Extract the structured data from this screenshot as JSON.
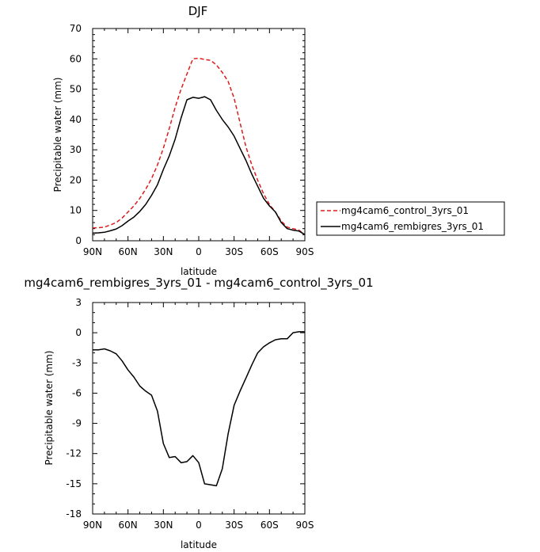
{
  "chart_data": [
    {
      "type": "line",
      "title": "DJF",
      "xlabel": "latitude",
      "ylabel": "Precipitable water (mm)",
      "xlim": [
        90,
        -90
      ],
      "ylim": [
        0,
        70
      ],
      "xticks": [
        90,
        60,
        30,
        0,
        -30,
        -60,
        -90
      ],
      "xtick_labels": [
        "90N",
        "60N",
        "30N",
        "0",
        "30S",
        "60S",
        "90S"
      ],
      "yticks": [
        0,
        10,
        20,
        30,
        40,
        50,
        60,
        70
      ],
      "ytick_labels": [
        "0",
        "10",
        "20",
        "30",
        "40",
        "50",
        "60",
        "70"
      ],
      "legend_position": "right",
      "series": [
        {
          "name": "mg4cam6_control_3yrs_01",
          "color": "#dd1c1c",
          "dash": "dashed",
          "x": [
            90,
            85,
            80,
            75,
            70,
            65,
            60,
            55,
            50,
            45,
            40,
            35,
            30,
            25,
            20,
            15,
            10,
            5,
            0,
            -5,
            -10,
            -15,
            -20,
            -25,
            -30,
            -35,
            -40,
            -45,
            -50,
            -55,
            -60,
            -65,
            -70,
            -75,
            -80,
            -85,
            -90
          ],
          "y": [
            4.2,
            4.3,
            4.5,
            5.2,
            6.0,
            7.5,
            9.5,
            11.5,
            14.0,
            17.0,
            20.5,
            25.0,
            30.5,
            37.0,
            44.0,
            50.0,
            55.0,
            60.0,
            60.2,
            59.8,
            59.5,
            58.0,
            55.5,
            52.5,
            47.0,
            39.0,
            31.0,
            25.0,
            20.0,
            15.5,
            12.0,
            9.5,
            6.5,
            4.5,
            4.0,
            3.5,
            2.0
          ]
        },
        {
          "name": "mg4cam6_rembigres_3yrs_01",
          "color": "#000000",
          "dash": "solid",
          "x": [
            90,
            85,
            80,
            75,
            70,
            65,
            60,
            55,
            50,
            45,
            40,
            35,
            30,
            25,
            20,
            15,
            10,
            5,
            0,
            -5,
            -10,
            -15,
            -20,
            -25,
            -30,
            -35,
            -40,
            -45,
            -50,
            -55,
            -60,
            -65,
            -70,
            -75,
            -80,
            -85,
            -90
          ],
          "y": [
            2.5,
            2.6,
            2.8,
            3.3,
            3.9,
            5.0,
            6.5,
            7.8,
            9.7,
            12.0,
            15.0,
            18.5,
            23.5,
            28.0,
            33.5,
            40.5,
            46.5,
            47.3,
            47.0,
            47.5,
            46.5,
            43.0,
            40.0,
            37.5,
            34.5,
            30.5,
            26.5,
            22.0,
            18.0,
            14.0,
            11.5,
            9.5,
            6.0,
            4.0,
            3.5,
            3.2,
            2.0
          ]
        }
      ]
    },
    {
      "type": "line",
      "title": "mg4cam6_rembigres_3yrs_01 - mg4cam6_control_3yrs_01",
      "xlabel": "latitude",
      "ylabel": "Precipitable water (mm)",
      "xlim": [
        90,
        -90
      ],
      "ylim": [
        -18,
        3
      ],
      "xticks": [
        90,
        60,
        30,
        0,
        -30,
        -60,
        -90
      ],
      "xtick_labels": [
        "90N",
        "60N",
        "30N",
        "0",
        "30S",
        "60S",
        "90S"
      ],
      "yticks": [
        3,
        0,
        -3,
        -6,
        -9,
        -12,
        -15,
        -18
      ],
      "ytick_labels": [
        "3",
        "0",
        "-3",
        "-6",
        "-9",
        "-12",
        "-15",
        "-18"
      ],
      "series": [
        {
          "color": "#000000",
          "dash": "solid",
          "x": [
            90,
            85,
            80,
            75,
            70,
            65,
            60,
            55,
            50,
            45,
            40,
            35,
            30,
            25,
            20,
            15,
            10,
            5,
            0,
            -5,
            -10,
            -15,
            -20,
            -25,
            -30,
            -35,
            -40,
            -45,
            -50,
            -55,
            -60,
            -65,
            -70,
            -75,
            -80,
            -85,
            -90
          ],
          "y": [
            -1.7,
            -1.7,
            -1.6,
            -1.8,
            -2.1,
            -2.8,
            -3.7,
            -4.4,
            -5.3,
            -5.8,
            -6.2,
            -7.8,
            -11.0,
            -12.4,
            -12.3,
            -12.9,
            -12.8,
            -12.2,
            -12.9,
            -15.0,
            -15.1,
            -15.2,
            -13.5,
            -10.0,
            -7.2,
            -5.8,
            -4.5,
            -3.2,
            -2.0,
            -1.4,
            -1.0,
            -0.7,
            -0.6,
            -0.6,
            0.0,
            0.1,
            0.1
          ]
        }
      ]
    }
  ]
}
